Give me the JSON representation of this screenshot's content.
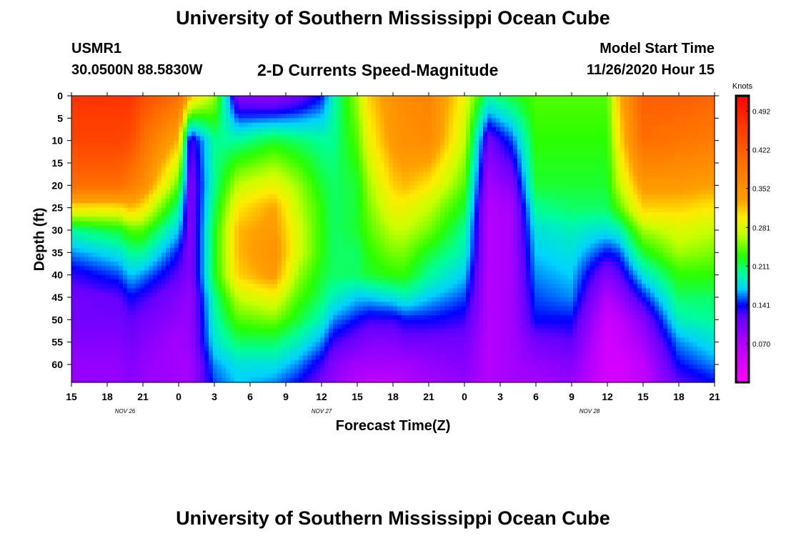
{
  "header": {
    "title": "University of Southern Mississippi Ocean Cube",
    "station": "USMR1",
    "coords": "30.0500N 88.5830W",
    "subtitle": "2-D Currents Speed-Magnitude",
    "model_label": "Model Start Time",
    "model_time": "11/26/2020 Hour 15"
  },
  "footer": {
    "title": "University of Southern Mississippi Ocean Cube"
  },
  "chart_data": {
    "type": "heatmap",
    "title": "2-D Currents Speed-Magnitude",
    "xlabel": "Forecast Time(Z)",
    "ylabel": "Depth (ft)",
    "x_ticks": [
      "15",
      "18",
      "21",
      "0",
      "3",
      "6",
      "9",
      "12",
      "15",
      "18",
      "21",
      "0",
      "3",
      "6",
      "9",
      "12",
      "15",
      "18",
      "21"
    ],
    "x_range_hours": [
      0,
      54
    ],
    "date_labels": [
      {
        "text": "NOV 26",
        "hour": 4.5
      },
      {
        "text": "NOV 27",
        "hour": 21
      },
      {
        "text": "NOV 28",
        "hour": 43.5
      }
    ],
    "y_ticks": [
      0,
      5,
      10,
      15,
      20,
      25,
      30,
      35,
      40,
      45,
      50,
      55,
      60
    ],
    "ylim": [
      0,
      64
    ],
    "colorbar": {
      "label": "Knots",
      "ticks": [
        "0.492",
        "0.422",
        "0.352",
        "0.281",
        "0.211",
        "0.141",
        "0.070"
      ],
      "range": [
        0,
        0.52
      ]
    },
    "speed_field_keyframes": {
      "hours": [
        0,
        4,
        5,
        6,
        9,
        10,
        12,
        14,
        17,
        19,
        21,
        22,
        24,
        25,
        27,
        28,
        30,
        33,
        35,
        37,
        39,
        42,
        45,
        46,
        48,
        51,
        54
      ],
      "depths": [
        0,
        10,
        20,
        25,
        30,
        35,
        40,
        45,
        50,
        55,
        60,
        64
      ],
      "values": [
        [
          0.47,
          0.45,
          0.4,
          0.3,
          0.2,
          0.16,
          0.13,
          0.11,
          0.11,
          0.1,
          0.09,
          0.09
        ],
        [
          0.47,
          0.45,
          0.4,
          0.3,
          0.22,
          0.18,
          0.15,
          0.12,
          0.11,
          0.1,
          0.09,
          0.09
        ],
        [
          0.47,
          0.44,
          0.38,
          0.32,
          0.24,
          0.2,
          0.17,
          0.14,
          0.12,
          0.11,
          0.1,
          0.1
        ],
        [
          0.44,
          0.4,
          0.36,
          0.3,
          0.24,
          0.2,
          0.16,
          0.13,
          0.11,
          0.1,
          0.09,
          0.09
        ],
        [
          0.4,
          0.32,
          0.24,
          0.2,
          0.17,
          0.14,
          0.12,
          0.1,
          0.09,
          0.08,
          0.08,
          0.08
        ],
        [
          0.32,
          0.12,
          0.1,
          0.1,
          0.1,
          0.1,
          0.1,
          0.09,
          0.09,
          0.09,
          0.08,
          0.08
        ],
        [
          0.26,
          0.2,
          0.2,
          0.21,
          0.22,
          0.22,
          0.22,
          0.2,
          0.19,
          0.18,
          0.16,
          0.15
        ],
        [
          0.1,
          0.2,
          0.27,
          0.3,
          0.32,
          0.32,
          0.31,
          0.27,
          0.24,
          0.21,
          0.18,
          0.17
        ],
        [
          0.09,
          0.22,
          0.29,
          0.33,
          0.34,
          0.35,
          0.34,
          0.29,
          0.25,
          0.21,
          0.18,
          0.16
        ],
        [
          0.11,
          0.21,
          0.26,
          0.27,
          0.28,
          0.28,
          0.26,
          0.24,
          0.22,
          0.19,
          0.16,
          0.14
        ],
        [
          0.14,
          0.2,
          0.22,
          0.23,
          0.23,
          0.23,
          0.22,
          0.21,
          0.19,
          0.16,
          0.13,
          0.11
        ],
        [
          0.19,
          0.2,
          0.21,
          0.21,
          0.21,
          0.21,
          0.21,
          0.19,
          0.16,
          0.13,
          0.1,
          0.09
        ],
        [
          0.26,
          0.24,
          0.22,
          0.22,
          0.22,
          0.21,
          0.21,
          0.17,
          0.14,
          0.11,
          0.08,
          0.07
        ],
        [
          0.31,
          0.29,
          0.26,
          0.25,
          0.24,
          0.23,
          0.22,
          0.17,
          0.13,
          0.1,
          0.08,
          0.06
        ],
        [
          0.35,
          0.34,
          0.31,
          0.29,
          0.27,
          0.25,
          0.23,
          0.18,
          0.13,
          0.1,
          0.08,
          0.06
        ],
        [
          0.36,
          0.35,
          0.32,
          0.29,
          0.27,
          0.25,
          0.23,
          0.19,
          0.14,
          0.11,
          0.08,
          0.07
        ],
        [
          0.37,
          0.36,
          0.3,
          0.27,
          0.25,
          0.22,
          0.2,
          0.17,
          0.14,
          0.11,
          0.09,
          0.08
        ],
        [
          0.29,
          0.27,
          0.24,
          0.22,
          0.2,
          0.19,
          0.17,
          0.15,
          0.13,
          0.11,
          0.1,
          0.09
        ],
        [
          0.2,
          0.11,
          0.08,
          0.07,
          0.07,
          0.07,
          0.07,
          0.07,
          0.07,
          0.07,
          0.07,
          0.07
        ],
        [
          0.22,
          0.15,
          0.1,
          0.08,
          0.08,
          0.08,
          0.08,
          0.08,
          0.08,
          0.08,
          0.08,
          0.08
        ],
        [
          0.24,
          0.23,
          0.22,
          0.2,
          0.18,
          0.17,
          0.16,
          0.15,
          0.14,
          0.11,
          0.09,
          0.08
        ],
        [
          0.24,
          0.23,
          0.22,
          0.21,
          0.19,
          0.18,
          0.17,
          0.16,
          0.14,
          0.12,
          0.1,
          0.09
        ],
        [
          0.24,
          0.23,
          0.22,
          0.21,
          0.18,
          0.14,
          0.1,
          0.07,
          0.05,
          0.04,
          0.04,
          0.04
        ],
        [
          0.32,
          0.3,
          0.27,
          0.24,
          0.19,
          0.15,
          0.12,
          0.09,
          0.06,
          0.05,
          0.04,
          0.04
        ],
        [
          0.42,
          0.4,
          0.34,
          0.31,
          0.26,
          0.22,
          0.18,
          0.14,
          0.1,
          0.08,
          0.06,
          0.06
        ],
        [
          0.42,
          0.39,
          0.34,
          0.31,
          0.28,
          0.26,
          0.23,
          0.21,
          0.19,
          0.16,
          0.14,
          0.12
        ],
        [
          0.41,
          0.38,
          0.33,
          0.3,
          0.27,
          0.25,
          0.23,
          0.21,
          0.2,
          0.18,
          0.16,
          0.14
        ]
      ]
    }
  }
}
